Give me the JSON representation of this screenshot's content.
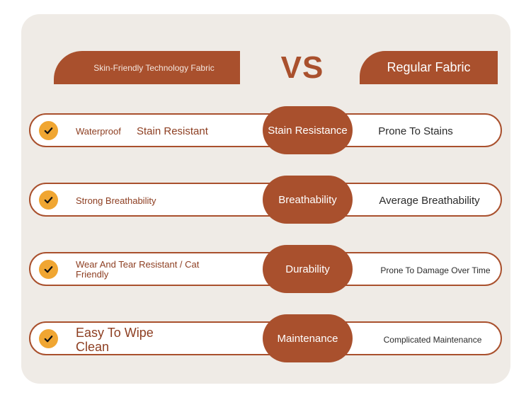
{
  "header": {
    "left_label": "Skin-Friendly Technology Fabric",
    "vs": "VS",
    "right_label": "Regular Fabric"
  },
  "rows": [
    {
      "left_a": "Waterproof",
      "left_b": "Stain Resistant",
      "center": "Stain Resistance",
      "right": "Prone To Stains"
    },
    {
      "left": "Strong Breathability",
      "center": "Breathability",
      "right": "Average Breathability"
    },
    {
      "left": "Wear And Tear Resistant / Cat Friendly",
      "center": "Durability",
      "right": "Prone To Damage Over Time"
    },
    {
      "left": "Easy To Wipe Clean",
      "center": "Maintenance",
      "right": "Complicated Maintenance"
    }
  ],
  "colors": {
    "brand": "#a9502d",
    "check": "#f0a632",
    "card": "#efebe6"
  },
  "icons": [
    "check-icon"
  ]
}
